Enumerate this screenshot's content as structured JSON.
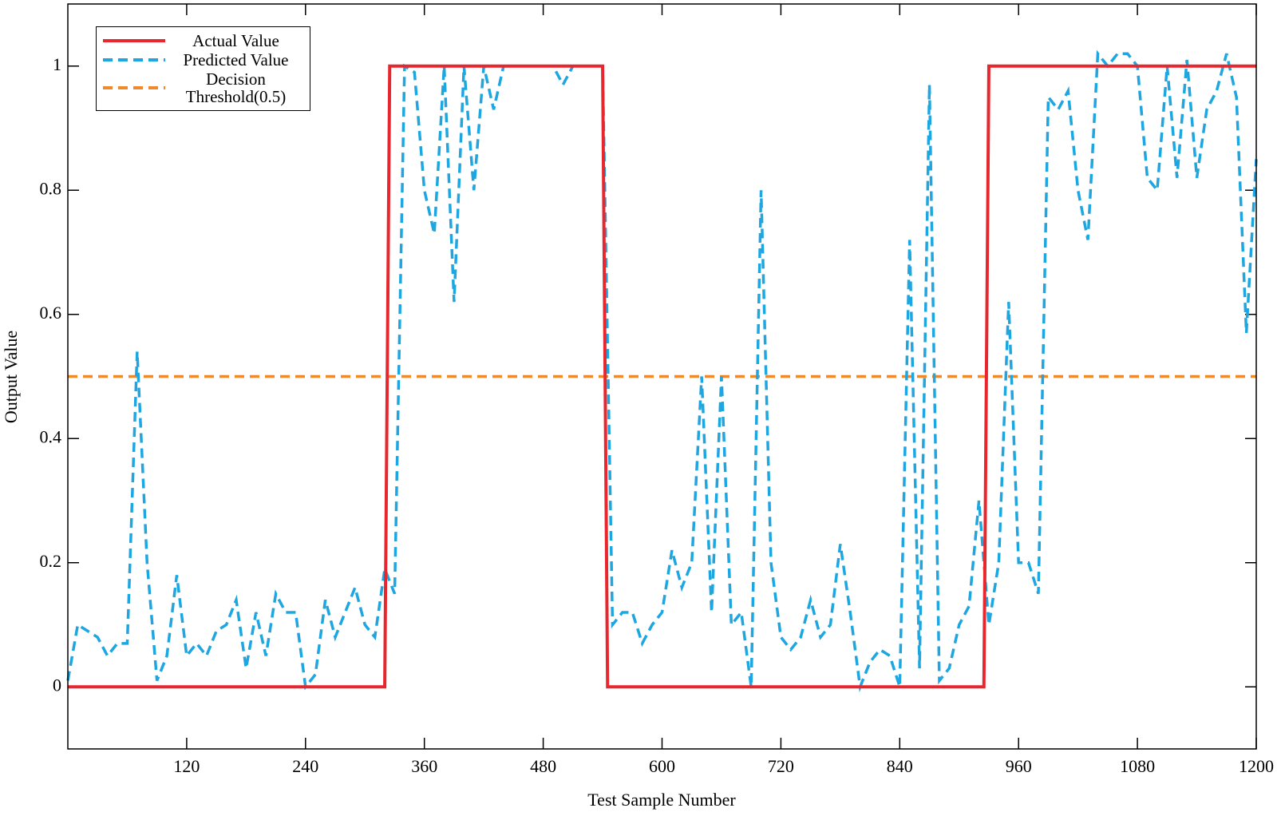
{
  "chart_data": {
    "type": "line",
    "xlabel": "Test Sample Number",
    "ylabel": "Output Value",
    "xlim": [
      0,
      1200
    ],
    "xticks": [
      120,
      240,
      360,
      480,
      600,
      720,
      840,
      960,
      1080,
      1200
    ],
    "ylim": [
      -0.1,
      1.1
    ],
    "yticks": [
      0,
      0.2,
      0.4,
      0.6,
      0.8,
      1
    ],
    "legend": "upper left",
    "series": [
      {
        "name": "Actual Value",
        "color": "#e8262d",
        "style": "solid",
        "x": [
          0,
          320,
          325,
          540,
          545,
          925,
          930,
          1200
        ],
        "values": [
          0,
          0,
          1,
          1,
          0,
          0,
          1,
          1
        ]
      },
      {
        "name": "Predicted Value",
        "color": "#1ea6e0",
        "style": "dashed",
        "x": [
          0,
          10,
          20,
          30,
          40,
          50,
          60,
          70,
          80,
          90,
          100,
          110,
          120,
          130,
          140,
          150,
          160,
          170,
          180,
          190,
          200,
          210,
          220,
          230,
          240,
          250,
          260,
          270,
          280,
          290,
          300,
          310,
          320,
          330,
          340,
          350,
          360,
          370,
          380,
          390,
          400,
          410,
          420,
          430,
          440,
          450,
          460,
          470,
          480,
          490,
          500,
          510,
          520,
          530,
          540,
          550,
          560,
          570,
          580,
          590,
          600,
          610,
          620,
          630,
          640,
          650,
          660,
          670,
          680,
          690,
          700,
          710,
          720,
          730,
          740,
          750,
          760,
          770,
          780,
          790,
          800,
          810,
          820,
          830,
          840,
          850,
          860,
          870,
          880,
          890,
          900,
          910,
          920,
          930,
          940,
          950,
          960,
          970,
          980,
          990,
          1000,
          1010,
          1020,
          1030,
          1040,
          1050,
          1060,
          1070,
          1080,
          1090,
          1100,
          1110,
          1120,
          1130,
          1140,
          1150,
          1160,
          1170,
          1180,
          1190,
          1200
        ],
        "values": [
          0.01,
          0.1,
          0.09,
          0.08,
          0.05,
          0.07,
          0.07,
          0.54,
          0.2,
          0.01,
          0.05,
          0.18,
          0.05,
          0.07,
          0.05,
          0.09,
          0.1,
          0.14,
          0.03,
          0.12,
          0.05,
          0.15,
          0.12,
          0.12,
          0.0,
          0.02,
          0.14,
          0.08,
          0.12,
          0.16,
          0.1,
          0.08,
          0.19,
          0.15,
          1.0,
          0.99,
          0.8,
          0.73,
          1.0,
          0.62,
          1.0,
          0.8,
          1.0,
          0.93,
          1.0,
          1.0,
          1.0,
          1.0,
          1.0,
          1.0,
          0.97,
          1.0,
          1.0,
          1.0,
          1.0,
          0.1,
          0.12,
          0.12,
          0.07,
          0.1,
          0.12,
          0.22,
          0.16,
          0.2,
          0.5,
          0.12,
          0.5,
          0.1,
          0.12,
          0.0,
          0.8,
          0.2,
          0.08,
          0.06,
          0.08,
          0.14,
          0.08,
          0.1,
          0.23,
          0.12,
          0.0,
          0.04,
          0.06,
          0.05,
          0.0,
          0.72,
          0.03,
          0.97,
          0.01,
          0.03,
          0.1,
          0.13,
          0.3,
          0.1,
          0.2,
          0.62,
          0.2,
          0.2,
          0.15,
          0.95,
          0.93,
          0.96,
          0.8,
          0.72,
          1.02,
          1.0,
          1.02,
          1.02,
          1.0,
          0.82,
          0.8,
          1.0,
          0.82,
          1.01,
          0.82,
          0.93,
          0.96,
          1.02,
          0.95,
          0.57,
          0.85
        ]
      },
      {
        "name": "Decision Threshold(0.5)",
        "color": "#f0882c",
        "style": "dashed",
        "x": [
          0,
          1200
        ],
        "values": [
          0.5,
          0.5
        ]
      }
    ]
  }
}
